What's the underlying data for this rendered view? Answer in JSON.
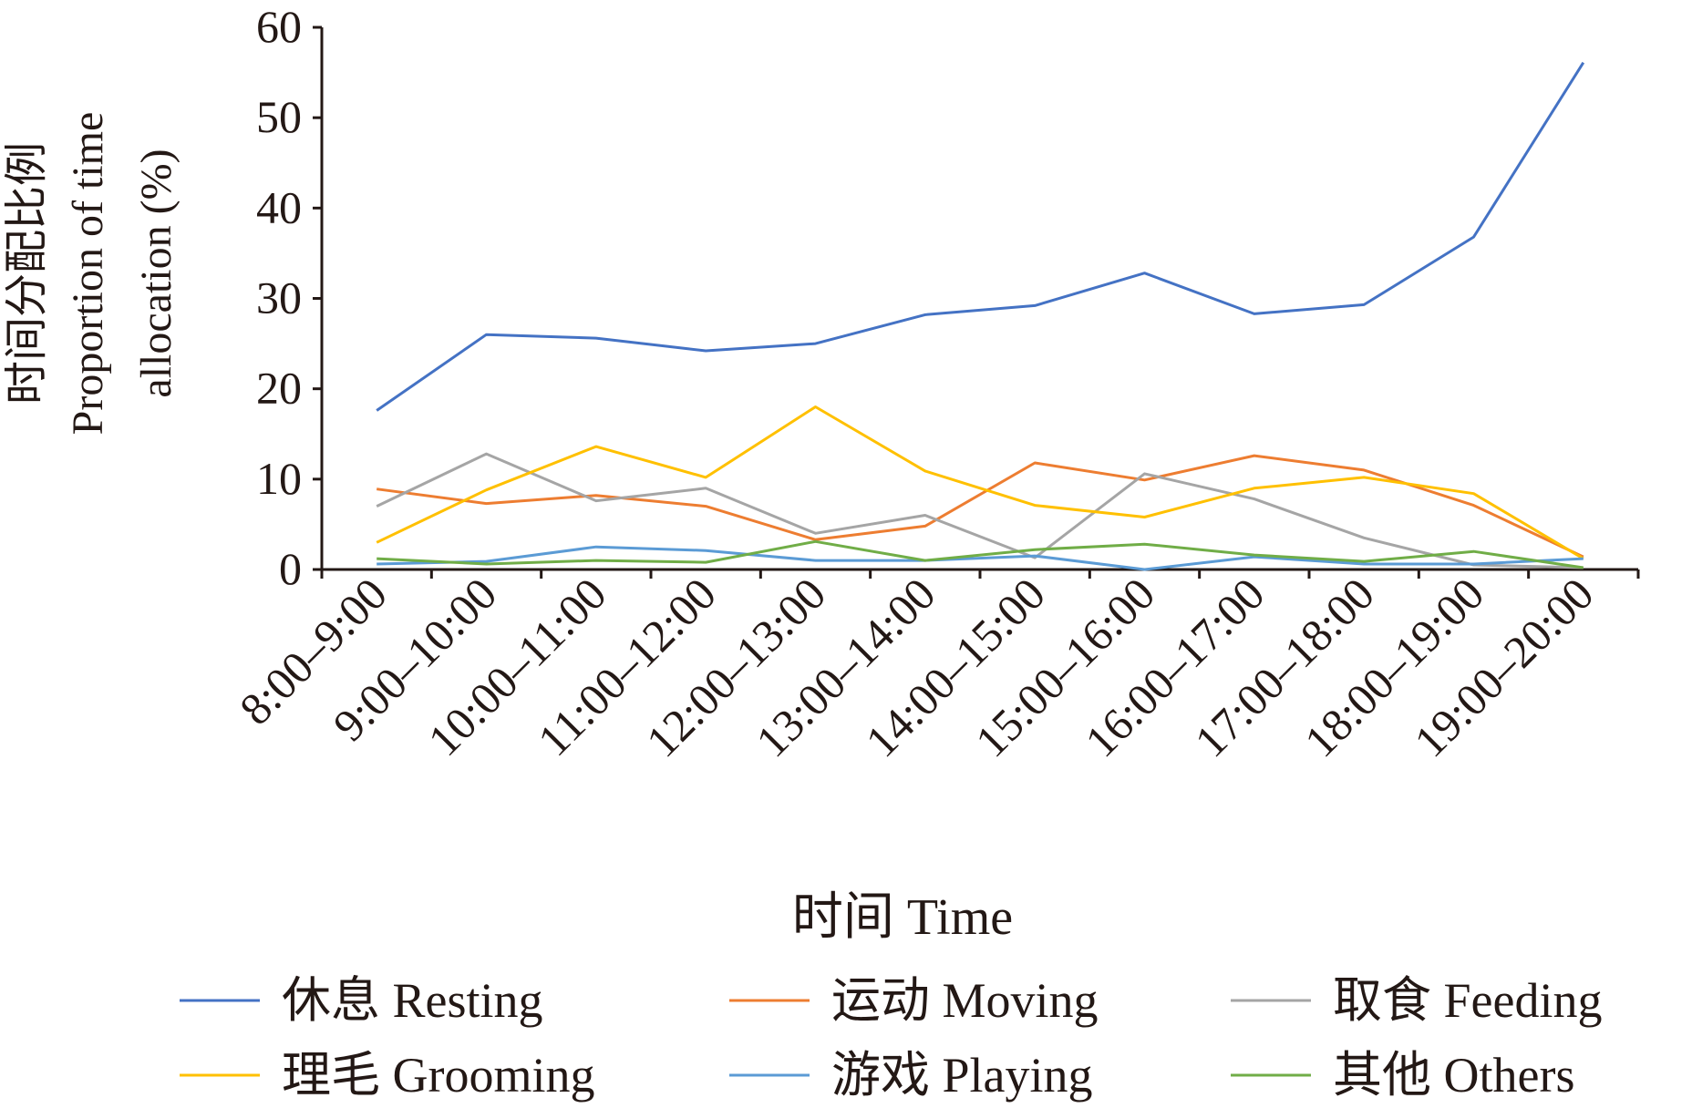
{
  "chart_data": {
    "type": "line",
    "categories": [
      "8:00–9:00",
      "9:00–10:00",
      "10:00–11:00",
      "11:00–12:00",
      "12:00–13:00",
      "13:00–14:00",
      "14:00–15:00",
      "15:00–16:00",
      "16:00–17:00",
      "17:00–18:00",
      "18:00–19:00",
      "19:00–20:00"
    ],
    "xlabel": "时间 Time",
    "ylabel_lines": [
      "时间分配比例",
      "Proportion of time",
      "allocation (%)"
    ],
    "ylim": [
      0,
      60
    ],
    "yticks": [
      "0",
      "10",
      "20",
      "30",
      "40",
      "50",
      "60"
    ],
    "grid": false,
    "legend_position": "bottom",
    "series": [
      {
        "name": "休息 Resting",
        "color": "#4472C4",
        "values": [
          17.6,
          26.0,
          25.6,
          24.2,
          25.0,
          28.2,
          29.2,
          32.8,
          28.3,
          29.3,
          36.8,
          56.1
        ]
      },
      {
        "name": "运动 Moving",
        "color": "#ED7D31",
        "values": [
          8.9,
          7.3,
          8.2,
          7.0,
          3.3,
          4.8,
          11.8,
          9.9,
          12.6,
          11.0,
          7.1,
          1.4
        ]
      },
      {
        "name": "取食 Feeding",
        "color": "#A5A5A5",
        "values": [
          7.0,
          12.8,
          7.6,
          9.0,
          4.0,
          6.0,
          1.3,
          10.6,
          7.8,
          3.5,
          0.5,
          0.2
        ]
      },
      {
        "name": "理毛 Grooming",
        "color": "#FFC000",
        "values": [
          3.0,
          8.8,
          13.6,
          10.2,
          18.0,
          10.9,
          7.1,
          5.8,
          9.0,
          10.2,
          8.4,
          1.2
        ]
      },
      {
        "name": "游戏 Playing",
        "color": "#5B9BD5",
        "values": [
          0.6,
          0.9,
          2.5,
          2.1,
          1.0,
          1.0,
          1.5,
          0.0,
          1.4,
          0.6,
          0.6,
          1.2
        ]
      },
      {
        "name": "其他 Others",
        "color": "#70AD47",
        "values": [
          1.2,
          0.6,
          1.0,
          0.8,
          3.1,
          1.0,
          2.2,
          2.8,
          1.6,
          0.9,
          2.0,
          0.2
        ]
      }
    ]
  }
}
